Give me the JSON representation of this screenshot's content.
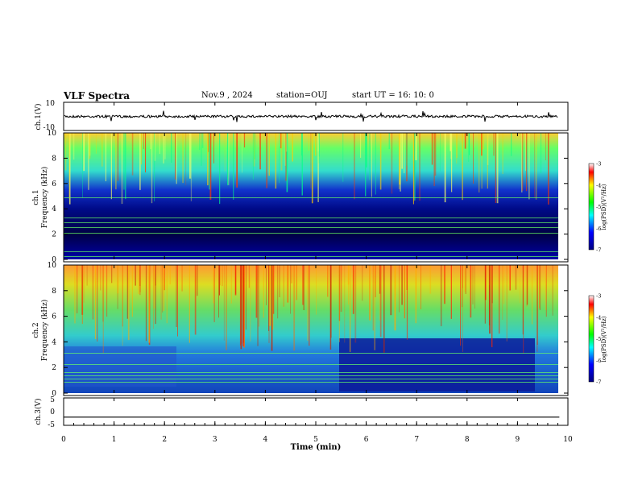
{
  "header": {
    "title": "VLF Spectra",
    "date": "Nov.9 , 2024",
    "station": "station=OUJ",
    "start": "start UT = 16: 10: 0"
  },
  "colors": {
    "spectrogram_low": "#00008b",
    "spectrogram_mid": "#00ffff",
    "spectrogram_high": "#ff0000",
    "trace": "#000000"
  },
  "chart_data": [
    {
      "type": "line",
      "panel": "ch1-waveform",
      "ylabel": "ch.1(V)",
      "ylim": [
        -10,
        10
      ],
      "yticks": [
        "10",
        "-10"
      ],
      "x": [
        0,
        10
      ],
      "xlim": [
        0,
        10
      ],
      "values": [
        0,
        0
      ],
      "note_style": "noisy trace near 0 V"
    },
    {
      "type": "heatmap",
      "panel": "ch1-spectrogram",
      "ylabel": "ch.1 Frequency (kHz)",
      "ylim": [
        0,
        10
      ],
      "yticks": [
        "0",
        "2",
        "4",
        "6",
        "8",
        "10"
      ],
      "xlim": [
        0,
        9.83
      ],
      "colorbar": {
        "label": "log(PSD)(V²/Hz)",
        "range": [
          -7,
          -3
        ],
        "ticks": [
          "-3",
          "-4",
          "-5",
          "-6",
          "-7"
        ]
      }
    },
    {
      "type": "heatmap",
      "panel": "ch2-spectrogram",
      "ylabel": "ch.2 Frequency (kHz)",
      "ylim": [
        0,
        10
      ],
      "yticks": [
        "0",
        "2",
        "4",
        "6",
        "8",
        "10"
      ],
      "xlim": [
        0,
        9.83
      ],
      "colorbar": {
        "label": "log(PSD)(V²/Hz)",
        "range": [
          -7,
          -3
        ],
        "ticks": [
          "-3",
          "-4",
          "-5",
          "-6",
          "-7"
        ]
      }
    },
    {
      "type": "line",
      "panel": "ch3-waveform",
      "ylabel": "ch.3(V)",
      "ylim": [
        -5,
        5
      ],
      "yticks": [
        "5",
        "0",
        "-5"
      ],
      "x": [
        0,
        9.83
      ],
      "values": [
        -2,
        -2
      ]
    }
  ],
  "xaxis": {
    "label": "Time (min)",
    "ticks": [
      "0",
      "1",
      "2",
      "3",
      "4",
      "5",
      "6",
      "7",
      "8",
      "9",
      "10"
    ],
    "xlim": [
      0,
      10
    ]
  }
}
